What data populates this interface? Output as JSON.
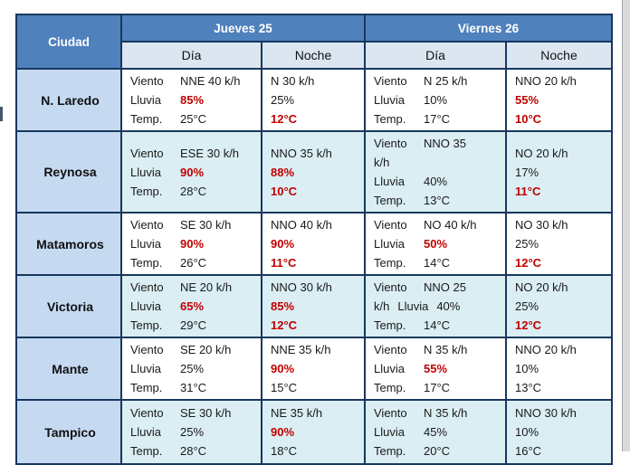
{
  "colors": {
    "header_bg": "#4F81BD",
    "subheader_bg": "#DCE6F1",
    "city_bg": "#C5D9F1",
    "alt_row_bg": "#DAEEF3",
    "red": "#C00000",
    "border_dark": "#17375E"
  },
  "table": {
    "header": {
      "city": "Ciudad",
      "days": [
        {
          "label": "Jueves 25",
          "cols": [
            "Día",
            "Noche"
          ]
        },
        {
          "label": "Viernes 26",
          "cols": [
            "Día",
            "Noche"
          ]
        }
      ]
    },
    "rows": [
      {
        "city": "N. Laredo",
        "cells": [
          {
            "lines": [
              [
                {
                  "t": "Viento",
                  "lbl": true
                },
                {
                  "t": "NNE 40 k/h"
                }
              ],
              [
                {
                  "t": "Lluvia",
                  "lbl": true
                },
                {
                  "t": "85%",
                  "red": true
                }
              ],
              [
                {
                  "t": "Temp.",
                  "lbl": true
                },
                {
                  "t": "25°C"
                }
              ]
            ]
          },
          {
            "lines": [
              [
                {
                  "t": "N 30 k/h"
                }
              ],
              [
                {
                  "t": "25%"
                }
              ],
              [
                {
                  "t": "12°C",
                  "red": true
                }
              ]
            ]
          },
          {
            "lines": [
              [
                {
                  "t": "Viento",
                  "lbl": true
                },
                {
                  "t": "N 25 k/h"
                }
              ],
              [
                {
                  "t": "Lluvia",
                  "lbl": true
                },
                {
                  "t": "10%"
                }
              ],
              [
                {
                  "t": "Temp.",
                  "lbl": true
                },
                {
                  "t": "17°C"
                }
              ]
            ]
          },
          {
            "lines": [
              [
                {
                  "t": "NNO 20 k/h"
                }
              ],
              [
                {
                  "t": "55%",
                  "red": true
                }
              ],
              [
                {
                  "t": "10°C",
                  "red": true
                }
              ]
            ]
          }
        ]
      },
      {
        "city": "Reynosa",
        "cells": [
          {
            "lines": [
              [
                {
                  "t": "Viento",
                  "lbl": true
                },
                {
                  "t": "ESE 30 k/h"
                }
              ],
              [
                {
                  "t": "Lluvia",
                  "lbl": true
                },
                {
                  "t": "90%",
                  "red": true
                }
              ],
              [
                {
                  "t": "Temp.",
                  "lbl": true
                },
                {
                  "t": "28°C"
                }
              ]
            ]
          },
          {
            "lines": [
              [
                {
                  "t": "NNO 35 k/h"
                }
              ],
              [
                {
                  "t": "88%",
                  "red": true
                }
              ],
              [
                {
                  "t": "10°C",
                  "red": true
                }
              ]
            ]
          },
          {
            "lines": [
              [
                {
                  "t": "Viento",
                  "lbl": true
                },
                {
                  "t": "NNO 35"
                }
              ],
              [
                {
                  "t": "k/h"
                }
              ],
              [
                {
                  "t": "Lluvia",
                  "lbl": true
                },
                {
                  "t": "40%"
                }
              ],
              [
                {
                  "t": "Temp.",
                  "lbl": true
                },
                {
                  "t": "13°C"
                }
              ]
            ]
          },
          {
            "lines": [
              [
                {
                  "t": "NO 20 k/h"
                }
              ],
              [
                {
                  "t": "17%"
                }
              ],
              [
                {
                  "t": "11°C",
                  "red": true
                }
              ]
            ]
          }
        ]
      },
      {
        "city": "Matamoros",
        "cells": [
          {
            "lines": [
              [
                {
                  "t": "Viento",
                  "lbl": true
                },
                {
                  "t": "SE 30 k/h"
                }
              ],
              [
                {
                  "t": "Lluvia",
                  "lbl": true
                },
                {
                  "t": "90%",
                  "red": true
                }
              ],
              [
                {
                  "t": "Temp.",
                  "lbl": true
                },
                {
                  "t": "26°C"
                }
              ]
            ]
          },
          {
            "lines": [
              [
                {
                  "t": "NNO 40 k/h"
                }
              ],
              [
                {
                  "t": "90%",
                  "red": true
                }
              ],
              [
                {
                  "t": "11°C",
                  "red": true
                }
              ]
            ]
          },
          {
            "lines": [
              [
                {
                  "t": "Viento",
                  "lbl": true
                },
                {
                  "t": "NO 40 k/h"
                }
              ],
              [
                {
                  "t": "Lluvia",
                  "lbl": true
                },
                {
                  "t": "50%",
                  "red": true
                }
              ],
              [
                {
                  "t": "Temp.",
                  "lbl": true
                },
                {
                  "t": "14°C"
                }
              ]
            ]
          },
          {
            "lines": [
              [
                {
                  "t": "NO 30 k/h"
                }
              ],
              [
                {
                  "t": "25%"
                }
              ],
              [
                {
                  "t": "12°C",
                  "red": true
                }
              ]
            ]
          }
        ]
      },
      {
        "city": "Victoria",
        "cells": [
          {
            "lines": [
              [
                {
                  "t": "Viento",
                  "lbl": true
                },
                {
                  "t": "NE 20 k/h"
                }
              ],
              [
                {
                  "t": "Lluvia",
                  "lbl": true
                },
                {
                  "t": "65%",
                  "red": true
                }
              ],
              [
                {
                  "t": "Temp.",
                  "lbl": true
                },
                {
                  "t": "29°C"
                }
              ]
            ]
          },
          {
            "lines": [
              [
                {
                  "t": "NNO 30 k/h"
                }
              ],
              [
                {
                  "t": "85%",
                  "red": true
                }
              ],
              [
                {
                  "t": "12°C",
                  "red": true
                }
              ]
            ]
          },
          {
            "lines": [
              [
                {
                  "t": "Viento",
                  "lbl": true
                },
                {
                  "t": "NNO 25"
                }
              ],
              [
                {
                  "t": "k/h"
                },
                {
                  "t": "Lluvia"
                },
                {
                  "t": "40%"
                }
              ],
              [
                {
                  "t": "Temp.",
                  "lbl": true
                },
                {
                  "t": "14°C"
                }
              ]
            ]
          },
          {
            "lines": [
              [
                {
                  "t": "NO 20 k/h"
                }
              ],
              [
                {
                  "t": "25%"
                }
              ],
              [
                {
                  "t": "12°C",
                  "red": true
                }
              ]
            ]
          }
        ]
      },
      {
        "city": "Mante",
        "cells": [
          {
            "lines": [
              [
                {
                  "t": "Viento",
                  "lbl": true
                },
                {
                  "t": "SE 20 k/h"
                }
              ],
              [
                {
                  "t": "Lluvia",
                  "lbl": true
                },
                {
                  "t": "25%"
                }
              ],
              [
                {
                  "t": "Temp.",
                  "lbl": true
                },
                {
                  "t": "31°C"
                }
              ]
            ]
          },
          {
            "lines": [
              [
                {
                  "t": "NNE 35 k/h"
                }
              ],
              [
                {
                  "t": "90%",
                  "red": true
                }
              ],
              [
                {
                  "t": "15°C"
                }
              ]
            ]
          },
          {
            "lines": [
              [
                {
                  "t": "Viento",
                  "lbl": true
                },
                {
                  "t": "N 35 k/h"
                }
              ],
              [
                {
                  "t": "Lluvia",
                  "lbl": true
                },
                {
                  "t": "55%",
                  "red": true
                }
              ],
              [
                {
                  "t": "Temp.",
                  "lbl": true
                },
                {
                  "t": "17°C"
                }
              ]
            ]
          },
          {
            "lines": [
              [
                {
                  "t": "NNO 20 k/h"
                }
              ],
              [
                {
                  "t": "10%"
                }
              ],
              [
                {
                  "t": "13°C"
                }
              ]
            ]
          }
        ]
      },
      {
        "city": "Tampico",
        "cells": [
          {
            "lines": [
              [
                {
                  "t": "Viento",
                  "lbl": true
                },
                {
                  "t": "SE 30 k/h"
                }
              ],
              [
                {
                  "t": "Lluvia",
                  "lbl": true
                },
                {
                  "t": "25%"
                }
              ],
              [
                {
                  "t": "Temp.",
                  "lbl": true
                },
                {
                  "t": "28°C"
                }
              ]
            ]
          },
          {
            "lines": [
              [
                {
                  "t": "NE 35 k/h"
                }
              ],
              [
                {
                  "t": "90%",
                  "red": true
                }
              ],
              [
                {
                  "t": "18°C"
                }
              ]
            ]
          },
          {
            "lines": [
              [
                {
                  "t": "Viento",
                  "lbl": true
                },
                {
                  "t": "N 35 k/h"
                }
              ],
              [
                {
                  "t": "Lluvia",
                  "lbl": true
                },
                {
                  "t": "45%"
                }
              ],
              [
                {
                  "t": "Temp.",
                  "lbl": true
                },
                {
                  "t": "20°C"
                }
              ]
            ]
          },
          {
            "lines": [
              [
                {
                  "t": "NNO 30 k/h"
                }
              ],
              [
                {
                  "t": "10%"
                }
              ],
              [
                {
                  "t": "16°C"
                }
              ]
            ]
          }
        ]
      }
    ]
  }
}
